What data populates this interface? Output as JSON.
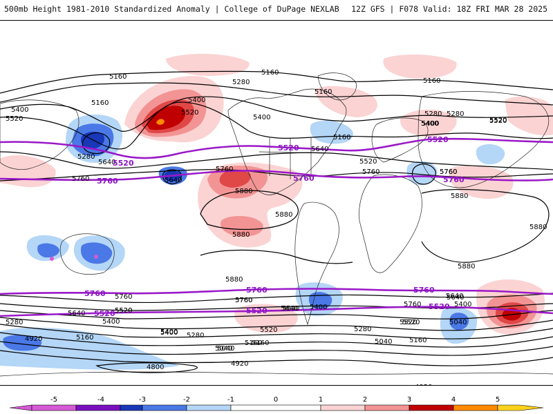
{
  "header": {
    "title_left": "500mb Height 1981-2010 Standardized Anomaly | College of DuPage NEXLAB",
    "title_right": "12Z GFS | F078 Valid: 18Z FRI MAR 28 2025"
  },
  "contour_labels": [
    {
      "id": "c1",
      "text": "5160",
      "color": "black"
    },
    {
      "id": "c2",
      "text": "5160",
      "color": "black"
    },
    {
      "id": "c3",
      "text": "5160",
      "color": "black"
    },
    {
      "id": "c4",
      "text": "5280",
      "color": "black"
    },
    {
      "id": "c5",
      "text": "5400",
      "color": "black"
    },
    {
      "id": "c6",
      "text": "5520",
      "color": "black"
    },
    {
      "id": "c7",
      "text": "5160",
      "color": "black"
    },
    {
      "id": "c8",
      "text": "5280",
      "color": "black"
    },
    {
      "id": "c9",
      "text": "5400",
      "color": "black"
    },
    {
      "id": "c10",
      "text": "5520",
      "color": "black"
    },
    {
      "id": "c11",
      "text": "5640",
      "color": "black"
    },
    {
      "id": "c12",
      "text": "5760",
      "color": "black"
    },
    {
      "id": "c13",
      "text": "5400",
      "color": "black"
    },
    {
      "id": "c14",
      "text": "5160",
      "color": "black"
    },
    {
      "id": "c15",
      "text": "5280",
      "color": "black"
    },
    {
      "id": "c16",
      "text": "5400",
      "color": "black"
    },
    {
      "id": "c17",
      "text": "5520",
      "color": "black"
    },
    {
      "id": "c18",
      "text": "5640",
      "color": "black"
    },
    {
      "id": "c19",
      "text": "5760",
      "color": "black"
    },
    {
      "id": "c20",
      "text": "5640",
      "color": "black"
    },
    {
      "id": "c21",
      "text": "5520",
      "color": "black"
    },
    {
      "id": "c22",
      "text": "5760",
      "color": "black"
    },
    {
      "id": "c23",
      "text": "5880",
      "color": "black"
    },
    {
      "id": "c24",
      "text": "5880",
      "color": "black"
    },
    {
      "id": "c25",
      "text": "5880",
      "color": "black"
    },
    {
      "id": "c26",
      "text": "5880",
      "color": "black"
    },
    {
      "id": "c27",
      "text": "5160",
      "color": "black"
    },
    {
      "id": "c28",
      "text": "5280",
      "color": "black"
    },
    {
      "id": "c29",
      "text": "5400",
      "color": "black"
    },
    {
      "id": "c30",
      "text": "5520",
      "color": "black"
    },
    {
      "id": "c31",
      "text": "5760",
      "color": "black"
    },
    {
      "id": "c32",
      "text": "5880",
      "color": "black"
    },
    {
      "id": "c33",
      "text": "5880",
      "color": "black"
    },
    {
      "id": "c34",
      "text": "5880",
      "color": "black"
    },
    {
      "id": "c35",
      "text": "5760",
      "color": "black"
    },
    {
      "id": "c36",
      "text": "5640",
      "color": "black"
    },
    {
      "id": "c37",
      "text": "5520",
      "color": "black"
    },
    {
      "id": "c38",
      "text": "5400",
      "color": "black"
    },
    {
      "id": "c39",
      "text": "5760",
      "color": "black"
    },
    {
      "id": "c40",
      "text": "5640",
      "color": "black"
    },
    {
      "id": "c41",
      "text": "5520",
      "color": "black"
    },
    {
      "id": "c42",
      "text": "5400",
      "color": "black"
    },
    {
      "id": "c43",
      "text": "5280",
      "color": "black"
    },
    {
      "id": "c44",
      "text": "5160",
      "color": "black"
    },
    {
      "id": "c45",
      "text": "5040",
      "color": "black"
    },
    {
      "id": "c46",
      "text": "4920",
      "color": "black"
    },
    {
      "id": "c47",
      "text": "4920",
      "color": "black"
    },
    {
      "id": "c48",
      "text": "4800",
      "color": "black"
    },
    {
      "id": "c49",
      "text": "5160",
      "color": "black"
    },
    {
      "id": "c50",
      "text": "5280",
      "color": "black"
    },
    {
      "id": "c51",
      "text": "5400",
      "color": "black"
    },
    {
      "id": "c52",
      "text": "5520",
      "color": "black"
    },
    {
      "id": "c53",
      "text": "5640",
      "color": "black"
    },
    {
      "id": "c54",
      "text": "5760",
      "color": "black"
    },
    {
      "id": "c55",
      "text": "5400",
      "color": "black"
    },
    {
      "id": "c56",
      "text": "5640",
      "color": "black"
    },
    {
      "id": "c57",
      "text": "5520",
      "color": "black"
    },
    {
      "id": "c58",
      "text": "5280",
      "color": "black"
    },
    {
      "id": "c59",
      "text": "5040",
      "color": "black"
    },
    {
      "id": "c60",
      "text": "5160",
      "color": "black"
    },
    {
      "id": "c61",
      "text": "5520",
      "color": "black"
    },
    {
      "id": "c62",
      "text": "5760",
      "color": "black"
    },
    {
      "id": "c63",
      "text": "5640",
      "color": "black"
    },
    {
      "id": "c64",
      "text": "5400",
      "color": "black"
    },
    {
      "id": "c65",
      "text": "5040",
      "color": "black"
    },
    {
      "id": "c66",
      "text": "4920",
      "color": "black"
    },
    {
      "id": "c67",
      "text": "5760",
      "color": "black"
    },
    {
      "id": "c68",
      "text": "5160",
      "color": "black"
    },
    {
      "id": "c69",
      "text": "5040",
      "color": "black"
    }
  ],
  "purple_labels": [
    "5520",
    "5760",
    "5520",
    "5760",
    "5520",
    "5760",
    "5760",
    "5520",
    "5760",
    "5760",
    "5520",
    "5520"
  ],
  "colorbar": {
    "ticks": [
      "-5",
      "-4",
      "-3",
      "-2",
      "-1",
      "0",
      "1",
      "2",
      "3",
      "4",
      "5"
    ],
    "colors": {
      "m5": "#d65ad6",
      "m4": "#7a10c0",
      "m3": "#1838b8",
      "m2": "#4a78e6",
      "m1": "#b4d6f7",
      "zero": "#ffffff",
      "p1": "#fbd3d3",
      "p2": "#f39494",
      "p3": "#e04848",
      "p4": "#c00000",
      "p5": "#ff8a00",
      "p5b": "#ffd21c"
    }
  },
  "colors": {
    "purple_line": "#9a18c8",
    "contour": "#000000"
  }
}
